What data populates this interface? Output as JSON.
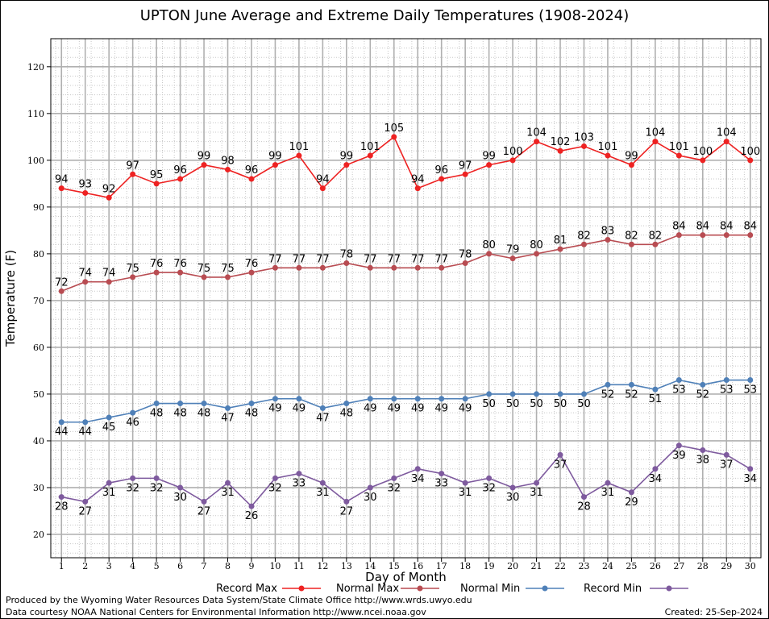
{
  "title": "UPTON June Average and Extreme Daily Temperatures (1908-2024)",
  "footer": {
    "produced_by": "Produced by the Wyoming Water Resources Data System/State Climate Office http://www.wrds.uwyo.edu",
    "data_courtesy": "Data courtesy NOAA National Centers for Environmental Information http://www.ncei.noaa.gov",
    "created": "Created:  25-Sep-2024"
  },
  "chart_data": {
    "type": "line",
    "title": "UPTON June Average and Extreme Daily Temperatures (1908-2024)",
    "xlabel": "Day of Month",
    "ylabel": "Temperature (F)",
    "xlim": [
      0.55,
      30.45
    ],
    "ylim": [
      15,
      126
    ],
    "yticks": [
      20,
      30,
      40,
      50,
      60,
      70,
      80,
      90,
      100,
      110,
      120
    ],
    "x": [
      1,
      2,
      3,
      4,
      5,
      6,
      7,
      8,
      9,
      10,
      11,
      12,
      13,
      14,
      15,
      16,
      17,
      18,
      19,
      20,
      21,
      22,
      23,
      24,
      25,
      26,
      27,
      28,
      29,
      30
    ],
    "grid": true,
    "legend_position": "bottom",
    "series": [
      {
        "name": "Record Max",
        "color": "#ee2222",
        "label_pos": "above",
        "values": [
          94,
          93,
          92,
          97,
          95,
          96,
          99,
          98,
          96,
          99,
          101,
          94,
          99,
          101,
          105,
          94,
          96,
          97,
          99,
          100,
          104,
          102,
          103,
          101,
          99,
          104,
          101,
          100,
          104,
          100
        ]
      },
      {
        "name": "Normal Max",
        "color": "#b84c52",
        "label_pos": "above",
        "values": [
          72,
          74,
          74,
          75,
          76,
          76,
          75,
          75,
          76,
          77,
          77,
          77,
          78,
          77,
          77,
          77,
          77,
          78,
          80,
          79,
          80,
          81,
          82,
          83,
          82,
          82,
          84,
          84,
          84,
          84
        ]
      },
      {
        "name": "Normal Min",
        "color": "#4f80b8",
        "label_pos": "below",
        "values": [
          44,
          44,
          45,
          46,
          48,
          48,
          48,
          47,
          48,
          49,
          49,
          47,
          48,
          49,
          49,
          49,
          49,
          49,
          50,
          50,
          50,
          50,
          50,
          52,
          52,
          51,
          53,
          52,
          53,
          53
        ]
      },
      {
        "name": "Record Min",
        "color": "#7e5a9e",
        "label_pos": "below",
        "values": [
          28,
          27,
          31,
          32,
          32,
          30,
          27,
          31,
          26,
          32,
          33,
          31,
          27,
          30,
          32,
          34,
          33,
          31,
          32,
          30,
          31,
          37,
          28,
          31,
          29,
          34,
          39,
          38,
          37,
          34
        ]
      }
    ]
  }
}
